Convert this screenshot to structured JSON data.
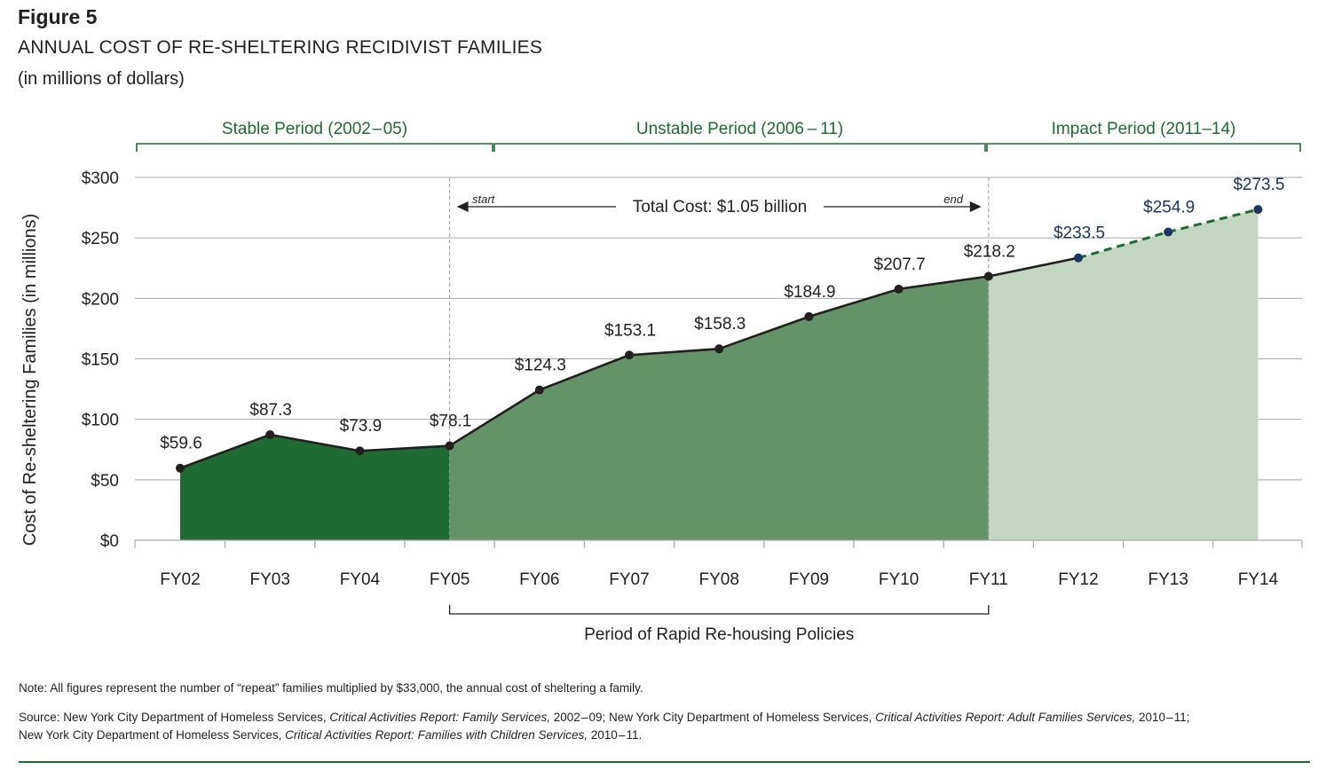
{
  "figure_label": "Figure 5",
  "title": "ANNUAL COST OF RE-SHELTERING RECIDIVIST FAMILIES",
  "subtitle": "(in millions of dollars)",
  "chart_data": {
    "type": "area",
    "title": "ANNUAL COST OF RE-SHELTERING RECIDIVIST FAMILIES",
    "ylabel": "Cost of Re-sheltering Families (in millions)",
    "xlabel": "",
    "ylim": [
      0,
      300
    ],
    "yticks": [
      0,
      50,
      100,
      150,
      200,
      250,
      300
    ],
    "ytick_labels": [
      "$0",
      "$50",
      "$100",
      "$150",
      "$200",
      "$250",
      "$300"
    ],
    "categories": [
      "FY02",
      "FY03",
      "FY04",
      "FY05",
      "FY06",
      "FY07",
      "FY08",
      "FY09",
      "FY10",
      "FY11",
      "FY12",
      "FY13",
      "FY14"
    ],
    "values": [
      59.6,
      87.3,
      73.9,
      78.1,
      124.3,
      153.1,
      158.3,
      184.9,
      207.7,
      218.2,
      233.5,
      254.9,
      273.5
    ],
    "value_labels": [
      "$59.6",
      "$87.3",
      "$73.9",
      "$78.1",
      "$124.3",
      "$153.1",
      "$158.3",
      "$184.9",
      "$207.7",
      "$218.2",
      "$233.5",
      "$254.9",
      "$273.5"
    ],
    "projected_from_index": 10,
    "grid": true,
    "periods": [
      {
        "label": "Stable Period (2002 – 05)",
        "start": "FY02",
        "end": "FY05",
        "color": "#1e6b34"
      },
      {
        "label": "Unstable Period (2006 – 11)",
        "start": "FY05",
        "end": "FY11",
        "color": "#649367"
      },
      {
        "label": "Impact Period (2011–14)",
        "start": "FY11",
        "end": "FY14",
        "color": "#c2d6c1"
      }
    ],
    "annotation": {
      "total_cost": "Total Cost: $1.05 billion",
      "start_label": "start",
      "end_label": "end",
      "from": "FY05",
      "to": "FY11"
    },
    "rapid_rehousing": {
      "label": "Period of Rapid Re-housing Policies",
      "from": "FY05",
      "to": "FY11"
    },
    "colors": {
      "stable_fill": "#1e6b34",
      "unstable_fill": "#649367",
      "impact_fill": "#c2d6c1",
      "line": "#231f20",
      "projection_line": "#1e6b34",
      "projection_marker": "#1d3461",
      "projection_label": "#1d3461",
      "header": "#1e6b34",
      "grid": "#a7a9ac"
    }
  },
  "note": "Note: All figures represent the number of “repeat” families multiplied by $33,000, the annual cost of sheltering a family.",
  "source": {
    "prefix": "Source: New York City Department of Homeless Services, ",
    "title1": "Critical Activities Report: Family Services,",
    "mid1": " 2002 – 09; New York City Department of Homeless Services, ",
    "title2": "Critical Activities Report: Adult Families Services,",
    "mid2": " 2010 – 11;",
    "line2_prefix": "New York City Department of Homeless Services, ",
    "title3": "Critical Activities Report: Families with Children Services,",
    "suffix": " 2010 – 11."
  }
}
